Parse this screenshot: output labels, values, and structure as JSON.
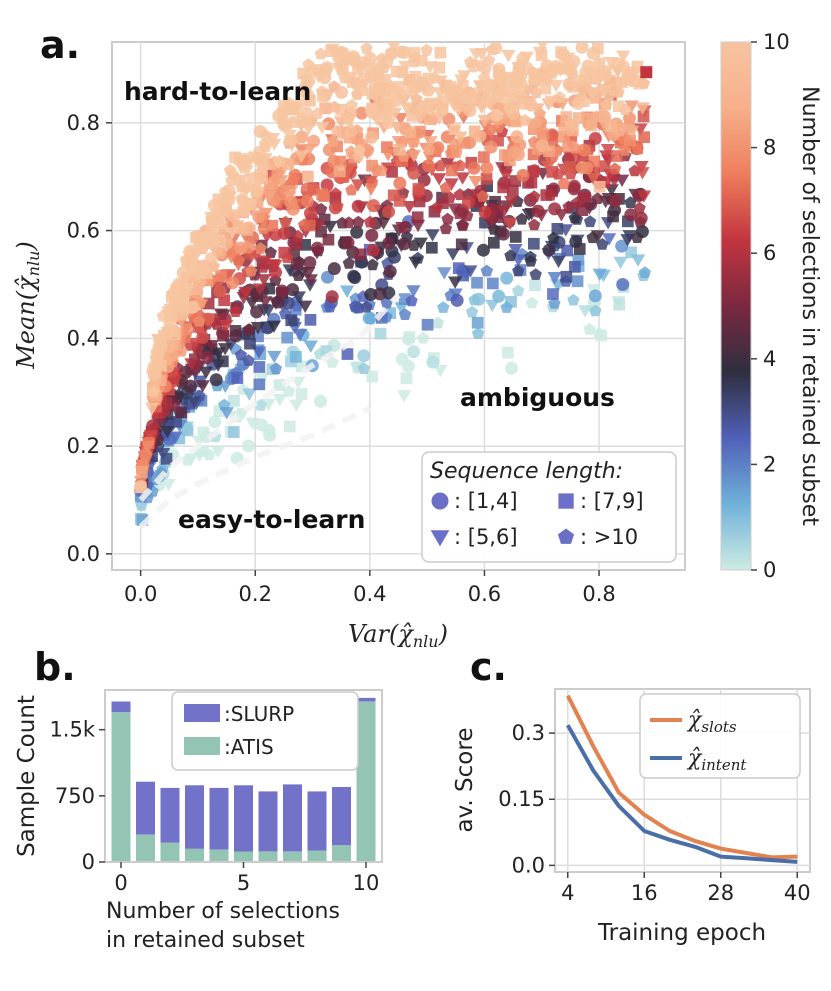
{
  "chart_data": [
    {
      "panel": "a.",
      "type": "scatter",
      "xlabel": "Var(χ̂nlu)",
      "ylabel": "Mean(χ̂nlu)",
      "xlim": [
        -0.05,
        0.95
      ],
      "ylim": [
        -0.03,
        0.95
      ],
      "xticks": [
        "0.0",
        "0.2",
        "0.4",
        "0.6",
        "0.8"
      ],
      "yticks": [
        "0.0",
        "0.2",
        "0.4",
        "0.6",
        "0.8"
      ],
      "grid": true,
      "annotations": [
        "hard-to-learn",
        "ambiguous",
        "easy-to-learn"
      ],
      "colorbar": {
        "label": "Number of selections in retained subset",
        "range": [
          0,
          10
        ],
        "ticks": [
          "0",
          "2",
          "4",
          "6",
          "8",
          "10"
        ],
        "colors": [
          "#cdebe3",
          "#6fb1d9",
          "#5060b8",
          "#2e2f3f",
          "#7b2841",
          "#c2353f",
          "#ee7d5c",
          "#f6b08a",
          "#f7c4a0"
        ]
      },
      "legend": {
        "title": "Sequence length:",
        "position": "lower-right",
        "entries": [
          {
            "marker": "circle",
            "label": ": [1,4]"
          },
          {
            "marker": "square",
            "label": ": [7,9]"
          },
          {
            "marker": "triangle-down",
            "label": ": [5,6]"
          },
          {
            "marker": "pentagon",
            "label": ": >10"
          }
        ]
      },
      "trend_curves": {
        "upper": [
          [
            0.0,
            0.1
          ],
          [
            0.05,
            0.16
          ],
          [
            0.1,
            0.2
          ],
          [
            0.2,
            0.28
          ],
          [
            0.3,
            0.35
          ],
          [
            0.38,
            0.4
          ],
          [
            0.45,
            0.48
          ]
        ],
        "lower": [
          [
            0.0,
            0.05
          ],
          [
            0.05,
            0.1
          ],
          [
            0.1,
            0.13
          ],
          [
            0.2,
            0.18
          ],
          [
            0.3,
            0.22
          ],
          [
            0.4,
            0.27
          ]
        ]
      }
    },
    {
      "panel": "b.",
      "type": "bar",
      "ylabel": "Sample Count",
      "xlabel": "Number of selections in retained subset",
      "xlabel_lines": [
        "Number of selections",
        "in retained subset"
      ],
      "xticks": [
        "0",
        "5",
        "10"
      ],
      "yticks": [
        "0",
        "750",
        "1.5k"
      ],
      "ylim": [
        0,
        1950
      ],
      "categories": [
        0,
        1,
        2,
        3,
        4,
        5,
        6,
        7,
        8,
        9,
        10
      ],
      "stacked": true,
      "series": [
        {
          "name": ":ATIS",
          "color": "#94c4b4",
          "values": [
            1700,
            310,
            220,
            150,
            140,
            120,
            120,
            120,
            130,
            190,
            1820
          ]
        },
        {
          "name": ":SLURP",
          "color": "#7172c8",
          "values": [
            120,
            600,
            620,
            720,
            700,
            750,
            680,
            760,
            670,
            660,
            40
          ]
        }
      ],
      "legend_position": "top-center"
    },
    {
      "panel": "c.",
      "type": "line",
      "ylabel": "av. Score",
      "xlabel": "Training epoch",
      "xticks": [
        "4",
        "16",
        "28",
        "40"
      ],
      "yticks": [
        "0.0",
        "0.15",
        "0.3"
      ],
      "xlim": [
        2,
        42
      ],
      "ylim": [
        -0.015,
        0.4
      ],
      "grid": true,
      "x": [
        4,
        8,
        12,
        16,
        20,
        24,
        28,
        32,
        36,
        40
      ],
      "series": [
        {
          "name": "χ̂slots",
          "color": "#e1824f",
          "values": [
            0.385,
            0.27,
            0.165,
            0.115,
            0.078,
            0.055,
            0.038,
            0.028,
            0.018,
            0.02
          ]
        },
        {
          "name": "χ̂intent",
          "color": "#4a6ea8",
          "values": [
            0.318,
            0.215,
            0.135,
            0.078,
            0.058,
            0.042,
            0.02,
            0.016,
            0.012,
            0.008
          ]
        }
      ],
      "legend_position": "top-right"
    }
  ]
}
